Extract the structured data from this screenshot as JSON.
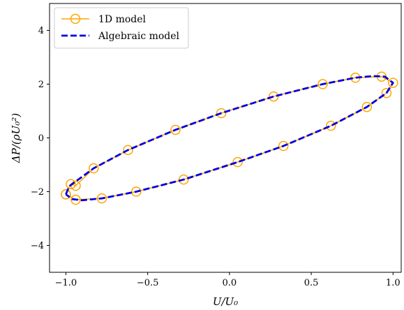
{
  "chart_data": {
    "type": "line",
    "title": "",
    "xlabel": "U/U₀",
    "ylabel": "ΔP/(ρU₀²)",
    "xlim": [
      -1.1,
      1.05
    ],
    "ylim": [
      -5.0,
      5.0
    ],
    "xticks": [
      -1.0,
      -0.5,
      0.0,
      0.5,
      1.0
    ],
    "xtick_labels": [
      "−1.0",
      "−0.5",
      "0.0",
      "0.5",
      "1.0"
    ],
    "yticks": [
      -4,
      -2,
      0,
      2,
      4
    ],
    "ytick_labels": [
      "−4",
      "−2",
      "0",
      "2",
      "4"
    ],
    "grid": false,
    "legend": {
      "placement": "top-left",
      "entries": [
        {
          "label": "1D model",
          "marker": "circle",
          "line": "solid",
          "color": "#FFA500"
        },
        {
          "label": "Algebraic model",
          "marker": "none",
          "line": "dashed",
          "color": "#0000E0"
        }
      ]
    },
    "series": [
      {
        "name": "1D model",
        "color": "#FFA500",
        "style": "solid-with-open-circles",
        "x": [
          -1.0,
          -0.97,
          -0.94,
          -0.83,
          -0.62,
          -0.33,
          -0.05,
          0.27,
          0.57,
          0.77,
          0.93,
          1.0,
          0.96,
          0.84,
          0.62,
          0.33,
          0.05,
          -0.28,
          -0.57,
          -0.78,
          -0.94,
          -1.0
        ],
        "y": [
          -2.1,
          -1.72,
          -1.78,
          -1.13,
          -0.45,
          0.3,
          0.92,
          1.54,
          2.0,
          2.24,
          2.28,
          2.05,
          1.67,
          1.15,
          0.45,
          -0.3,
          -0.9,
          -1.55,
          -2.0,
          -2.25,
          -2.3,
          -2.1
        ]
      },
      {
        "name": "Algebraic model",
        "color": "#0000E0",
        "style": "dashed",
        "x": [
          -1.0,
          -0.98,
          -0.94,
          -0.83,
          -0.62,
          -0.33,
          -0.05,
          0.27,
          0.57,
          0.77,
          0.88,
          0.95,
          1.0,
          0.96,
          0.84,
          0.62,
          0.33,
          0.05,
          -0.28,
          -0.57,
          -0.78,
          -0.9,
          -0.96,
          -1.0
        ],
        "y": [
          -2.1,
          -1.8,
          -1.62,
          -1.13,
          -0.45,
          0.3,
          0.92,
          1.54,
          2.0,
          2.24,
          2.3,
          2.28,
          2.05,
          1.67,
          1.15,
          0.45,
          -0.3,
          -0.9,
          -1.55,
          -2.0,
          -2.25,
          -2.32,
          -2.28,
          -2.1
        ]
      }
    ]
  }
}
